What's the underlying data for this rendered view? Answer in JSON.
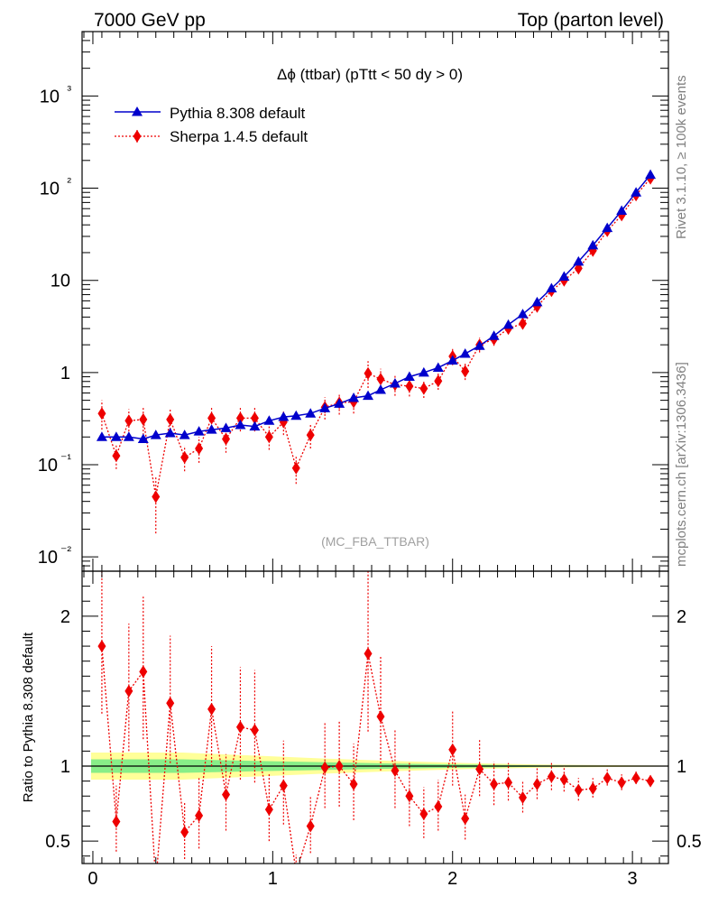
{
  "header": {
    "left": "7000 GeV pp",
    "right": "Top (parton level)"
  },
  "side_labels": {
    "rivet": "Rivet 3.1.10, ≥ 100k events",
    "mcplots": "mcplots.cern.ch [arXiv:1306.3436]"
  },
  "chart_data": [
    {
      "type": "line",
      "title": "Δϕ (ttbar) (pTtt < 50 dy > 0)",
      "analysis_label": "(MC_FBA_TTBAR)",
      "xlabel": "",
      "ylabel": "",
      "yscale": "log",
      "ylim": [
        0.007,
        5000
      ],
      "xlim": [
        -0.06,
        3.2
      ],
      "x_ticks": [
        "0",
        "1",
        "2",
        "3"
      ],
      "y_ticks": [
        "10⁻²",
        "10⁻¹",
        "1",
        "10",
        "10²",
        "10³"
      ],
      "legend_position": "top-left",
      "series": [
        {
          "name": "Pythia 8.308 default",
          "color": "#0000cc",
          "marker": "triangle",
          "x": [
            0.05,
            0.13,
            0.2,
            0.28,
            0.35,
            0.43,
            0.51,
            0.59,
            0.66,
            0.74,
            0.82,
            0.9,
            0.98,
            1.06,
            1.13,
            1.21,
            1.29,
            1.37,
            1.45,
            1.53,
            1.6,
            1.68,
            1.76,
            1.84,
            1.92,
            2.0,
            2.07,
            2.15,
            2.23,
            2.31,
            2.39,
            2.47,
            2.55,
            2.62,
            2.7,
            2.78,
            2.86,
            2.94,
            3.02,
            3.1
          ],
          "values": [
            0.2,
            0.2,
            0.2,
            0.19,
            0.21,
            0.22,
            0.21,
            0.23,
            0.24,
            0.25,
            0.27,
            0.26,
            0.3,
            0.33,
            0.34,
            0.36,
            0.41,
            0.46,
            0.53,
            0.56,
            0.65,
            0.76,
            0.9,
            1.0,
            1.13,
            1.35,
            1.6,
            1.95,
            2.5,
            3.3,
            4.3,
            5.8,
            8.2,
            11,
            16,
            24,
            37,
            57,
            90,
            140
          ],
          "err_low": [
            0.004,
            0.004,
            0.004,
            0.004,
            0.004,
            0.004,
            0.004,
            0.004,
            0.005,
            0.005,
            0.005,
            0.005,
            0.006,
            0.006,
            0.007,
            0.007,
            0.008,
            0.009,
            0.01,
            0.011,
            0.013,
            0.015,
            0.018,
            0.02,
            0.022,
            0.027,
            0.032,
            0.039,
            0.05,
            0.066,
            0.086,
            0.12,
            0.16,
            0.22,
            0.32,
            0.48,
            0.74,
            1.1,
            1.8,
            2.8
          ],
          "err_high": [
            0.004,
            0.004,
            0.004,
            0.004,
            0.004,
            0.004,
            0.004,
            0.004,
            0.005,
            0.005,
            0.005,
            0.005,
            0.006,
            0.006,
            0.007,
            0.007,
            0.008,
            0.009,
            0.01,
            0.011,
            0.013,
            0.015,
            0.018,
            0.02,
            0.022,
            0.027,
            0.032,
            0.039,
            0.05,
            0.066,
            0.086,
            0.12,
            0.16,
            0.22,
            0.32,
            0.48,
            0.74,
            1.1,
            1.8,
            2.8
          ]
        },
        {
          "name": "Sherpa 1.4.5 default",
          "color": "#ee0000",
          "marker": "diamond",
          "x": [
            0.05,
            0.13,
            0.2,
            0.28,
            0.35,
            0.43,
            0.51,
            0.59,
            0.66,
            0.74,
            0.82,
            0.9,
            0.98,
            1.06,
            1.13,
            1.21,
            1.29,
            1.37,
            1.45,
            1.53,
            1.6,
            1.68,
            1.76,
            1.84,
            1.92,
            2.0,
            2.07,
            2.15,
            2.23,
            2.31,
            2.39,
            2.47,
            2.55,
            2.62,
            2.7,
            2.78,
            2.86,
            2.94,
            3.02,
            3.1
          ],
          "values": [
            0.36,
            0.125,
            0.3,
            0.31,
            0.045,
            0.31,
            0.12,
            0.15,
            0.32,
            0.19,
            0.32,
            0.32,
            0.2,
            0.29,
            0.092,
            0.21,
            0.42,
            0.47,
            0.48,
            0.98,
            0.85,
            0.74,
            0.71,
            0.67,
            0.81,
            1.5,
            1.03,
            2.0,
            2.3,
            3.0,
            3.4,
            5.2,
            7.7,
            10,
            13.5,
            21,
            34.5,
            51,
            84,
            128
          ],
          "err_low": [
            0.12,
            0.035,
            0.09,
            0.1,
            0.027,
            0.09,
            0.035,
            0.045,
            0.09,
            0.055,
            0.09,
            0.09,
            0.055,
            0.08,
            0.03,
            0.06,
            0.11,
            0.12,
            0.12,
            0.3,
            0.22,
            0.18,
            0.16,
            0.14,
            0.16,
            0.3,
            0.2,
            0.35,
            0.35,
            0.4,
            0.45,
            0.6,
            0.8,
            0.9,
            1.1,
            1.5,
            2.2,
            3.0,
            4.0,
            5.0
          ],
          "err_high": [
            0.14,
            0.04,
            0.1,
            0.12,
            0.03,
            0.1,
            0.04,
            0.05,
            0.1,
            0.06,
            0.1,
            0.1,
            0.06,
            0.09,
            0.035,
            0.07,
            0.12,
            0.13,
            0.13,
            0.35,
            0.25,
            0.2,
            0.18,
            0.16,
            0.18,
            0.35,
            0.22,
            0.4,
            0.4,
            0.45,
            0.5,
            0.7,
            0.9,
            1.0,
            1.2,
            1.7,
            2.5,
            3.4,
            4.5,
            5.5
          ]
        }
      ]
    },
    {
      "type": "line",
      "title": "",
      "xlabel": "",
      "ylabel": "Ratio to Pythia 8.308 default",
      "ylim": [
        0.35,
        2.3
      ],
      "xlim": [
        -0.06,
        3.2
      ],
      "x_ticks": [
        "0",
        "1",
        "2",
        "3"
      ],
      "y_ticks": [
        "0.5",
        "1",
        "2"
      ],
      "reference_line": 1,
      "band_x": [
        -0.01,
        0.5,
        0.9,
        1.3,
        1.7,
        2.1,
        2.5,
        3.2
      ],
      "band_yellow_low": [
        0.91,
        0.91,
        0.93,
        0.95,
        0.967,
        0.98,
        0.99,
        0.997
      ],
      "band_yellow_high": [
        1.09,
        1.09,
        1.07,
        1.05,
        1.033,
        1.02,
        1.01,
        1.003
      ],
      "band_green_low": [
        0.955,
        0.955,
        0.965,
        0.975,
        0.983,
        0.99,
        0.995,
        0.998
      ],
      "band_green_high": [
        1.045,
        1.045,
        1.035,
        1.025,
        1.017,
        1.01,
        1.005,
        1.002
      ],
      "series": [
        {
          "name": "Sherpa 1.4.5 default",
          "color": "#ee0000",
          "marker": "diamond",
          "x": [
            0.05,
            0.13,
            0.2,
            0.28,
            0.35,
            0.43,
            0.51,
            0.59,
            0.66,
            0.74,
            0.82,
            0.9,
            0.98,
            1.06,
            1.13,
            1.21,
            1.29,
            1.37,
            1.45,
            1.53,
            1.6,
            1.68,
            1.76,
            1.84,
            1.92,
            2.0,
            2.07,
            2.15,
            2.23,
            2.31,
            2.39,
            2.47,
            2.55,
            2.62,
            2.7,
            2.78,
            2.86,
            2.94,
            3.02,
            3.1
          ],
          "values": [
            1.8,
            0.63,
            1.5,
            1.63,
            0.22,
            1.42,
            0.56,
            0.67,
            1.38,
            0.81,
            1.26,
            1.24,
            0.71,
            0.87,
            0.29,
            0.6,
            0.99,
            1.0,
            0.88,
            1.75,
            1.33,
            0.97,
            0.8,
            0.68,
            0.73,
            1.11,
            0.65,
            0.98,
            0.88,
            0.89,
            0.79,
            0.88,
            0.93,
            0.91,
            0.84,
            0.85,
            0.92,
            0.89,
            0.92,
            0.9
          ],
          "err_low": [
            0.45,
            0.2,
            0.4,
            0.45,
            0.12,
            0.4,
            0.18,
            0.22,
            0.38,
            0.24,
            0.35,
            0.35,
            0.21,
            0.26,
            0.1,
            0.18,
            0.27,
            0.27,
            0.24,
            0.52,
            0.36,
            0.25,
            0.2,
            0.16,
            0.16,
            0.24,
            0.14,
            0.18,
            0.14,
            0.12,
            0.1,
            0.1,
            0.09,
            0.08,
            0.07,
            0.06,
            0.05,
            0.05,
            0.04,
            0.035
          ],
          "err_high": [
            0.5,
            0.24,
            0.45,
            0.5,
            0.14,
            0.45,
            0.2,
            0.25,
            0.42,
            0.27,
            0.4,
            0.4,
            0.24,
            0.3,
            0.12,
            0.2,
            0.3,
            0.3,
            0.27,
            0.55,
            0.4,
            0.28,
            0.22,
            0.18,
            0.18,
            0.26,
            0.16,
            0.2,
            0.15,
            0.13,
            0.11,
            0.11,
            0.1,
            0.09,
            0.08,
            0.07,
            0.06,
            0.055,
            0.045,
            0.04
          ]
        }
      ]
    }
  ]
}
